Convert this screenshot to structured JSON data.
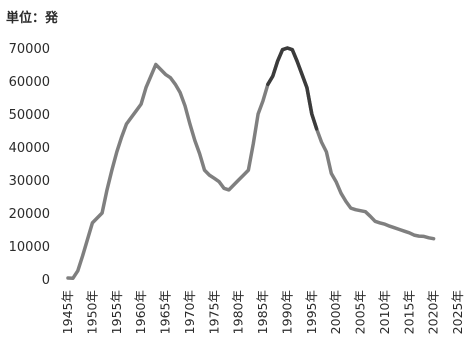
{
  "chart_data": {
    "type": "line",
    "unit_label": "単位：発",
    "title": "",
    "xlabel": "",
    "ylabel": "",
    "ylim": [
      0,
      70000
    ],
    "y_ticks": [
      "0",
      "10000",
      "20000",
      "30000",
      "40000",
      "50000",
      "60000",
      "70000"
    ],
    "x_tick_labels": [
      "1945年",
      "1950年",
      "1955年",
      "1960年",
      "1965年",
      "1970年",
      "1975年",
      "1980年",
      "1985年",
      "1990年",
      "1995年",
      "2000年",
      "2005年",
      "2010年",
      "2015年",
      "2020年",
      "2025年"
    ],
    "grid": false,
    "legend": "none",
    "colors": {
      "line": "#7f7f7f",
      "highlight": "#3b3b3b"
    },
    "highlight_range": [
      1986,
      1996
    ],
    "points": [
      [
        1945,
        300
      ],
      [
        1946,
        200
      ],
      [
        1947,
        2500
      ],
      [
        1948,
        7000
      ],
      [
        1949,
        12000
      ],
      [
        1950,
        17000
      ],
      [
        1951,
        18500
      ],
      [
        1952,
        20000
      ],
      [
        1953,
        27000
      ],
      [
        1954,
        33000
      ],
      [
        1955,
        38500
      ],
      [
        1956,
        43000
      ],
      [
        1957,
        47000
      ],
      [
        1958,
        49000
      ],
      [
        1959,
        51000
      ],
      [
        1960,
        53000
      ],
      [
        1961,
        58000
      ],
      [
        1962,
        61500
      ],
      [
        1963,
        65000
      ],
      [
        1964,
        63500
      ],
      [
        1965,
        62000
      ],
      [
        1966,
        61000
      ],
      [
        1967,
        59000
      ],
      [
        1968,
        56500
      ],
      [
        1969,
        52500
      ],
      [
        1970,
        47000
      ],
      [
        1971,
        42000
      ],
      [
        1972,
        38000
      ],
      [
        1973,
        33000
      ],
      [
        1974,
        31500
      ],
      [
        1975,
        30500
      ],
      [
        1976,
        29500
      ],
      [
        1977,
        27500
      ],
      [
        1978,
        27000
      ],
      [
        1979,
        28500
      ],
      [
        1980,
        30000
      ],
      [
        1981,
        31500
      ],
      [
        1982,
        33000
      ],
      [
        1983,
        41000
      ],
      [
        1984,
        50000
      ],
      [
        1985,
        54000
      ],
      [
        1986,
        59000
      ],
      [
        1987,
        61500
      ],
      [
        1988,
        66000
      ],
      [
        1989,
        69500
      ],
      [
        1990,
        70000
      ],
      [
        1991,
        69500
      ],
      [
        1992,
        66000
      ],
      [
        1993,
        62000
      ],
      [
        1994,
        58000
      ],
      [
        1995,
        50000
      ],
      [
        1996,
        45500
      ],
      [
        1997,
        41500
      ],
      [
        1998,
        38500
      ],
      [
        1999,
        32000
      ],
      [
        2000,
        29500
      ],
      [
        2001,
        26000
      ],
      [
        2002,
        23500
      ],
      [
        2003,
        21500
      ],
      [
        2004,
        21000
      ],
      [
        2005,
        20700
      ],
      [
        2006,
        20400
      ],
      [
        2007,
        19000
      ],
      [
        2008,
        17500
      ],
      [
        2009,
        17000
      ],
      [
        2010,
        16600
      ],
      [
        2011,
        16000
      ],
      [
        2012,
        15500
      ],
      [
        2013,
        15000
      ],
      [
        2014,
        14500
      ],
      [
        2015,
        14000
      ],
      [
        2016,
        13300
      ],
      [
        2017,
        13000
      ],
      [
        2018,
        12900
      ],
      [
        2019,
        12500
      ],
      [
        2020,
        12200
      ]
    ]
  }
}
